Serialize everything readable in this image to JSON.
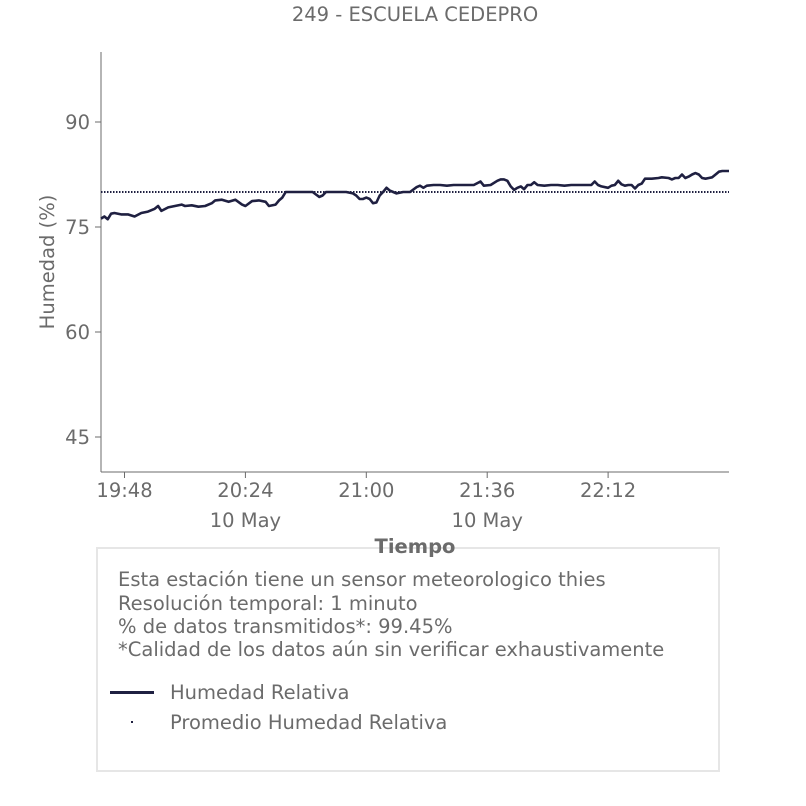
{
  "chart_data": {
    "type": "line",
    "title": "249 - ESCUELA CEDEPRO",
    "xlabel": "Tiempo",
    "ylabel": "Humedad (%)",
    "ylim": [
      40,
      100
    ],
    "xlim": [
      "19:41",
      "22:48"
    ],
    "grid": false,
    "x_ticks": [
      {
        "time": "19:48",
        "label": "19:48",
        "sublabel": ""
      },
      {
        "time": "20:24",
        "label": "20:24",
        "sublabel": "10 May"
      },
      {
        "time": "21:00",
        "label": "21:00",
        "sublabel": ""
      },
      {
        "time": "21:36",
        "label": "21:36",
        "sublabel": "10 May"
      },
      {
        "time": "22:12",
        "label": "22:12",
        "sublabel": ""
      }
    ],
    "y_ticks": [
      45,
      60,
      75,
      90
    ],
    "series": [
      {
        "name": "Humedad Relativa",
        "style": "solid",
        "color": "#1f2041",
        "points": [
          [
            "19:41",
            76.2
          ],
          [
            "19:42",
            76.5
          ],
          [
            "19:43",
            76.1
          ],
          [
            "19:44",
            76.9
          ],
          [
            "19:45",
            77.0
          ],
          [
            "19:47",
            76.8
          ],
          [
            "19:49",
            76.8
          ],
          [
            "19:51",
            76.5
          ],
          [
            "19:53",
            77.0
          ],
          [
            "19:55",
            77.2
          ],
          [
            "19:57",
            77.6
          ],
          [
            "19:58",
            78.0
          ],
          [
            "19:59",
            77.3
          ],
          [
            "20:01",
            77.8
          ],
          [
            "20:03",
            78.0
          ],
          [
            "20:05",
            78.2
          ],
          [
            "20:06",
            78.0
          ],
          [
            "20:08",
            78.1
          ],
          [
            "20:10",
            77.9
          ],
          [
            "20:12",
            78.0
          ],
          [
            "20:14",
            78.4
          ],
          [
            "20:15",
            78.8
          ],
          [
            "20:17",
            78.9
          ],
          [
            "20:19",
            78.6
          ],
          [
            "20:21",
            78.9
          ],
          [
            "20:23",
            78.2
          ],
          [
            "20:24",
            78.0
          ],
          [
            "20:26",
            78.7
          ],
          [
            "20:28",
            78.8
          ],
          [
            "20:30",
            78.6
          ],
          [
            "20:31",
            78.0
          ],
          [
            "20:33",
            78.2
          ],
          [
            "20:34",
            78.8
          ],
          [
            "20:35",
            79.2
          ],
          [
            "20:36",
            80.0
          ],
          [
            "20:38",
            80.0
          ],
          [
            "20:40",
            80.0
          ],
          [
            "20:42",
            80.0
          ],
          [
            "20:44",
            80.0
          ],
          [
            "20:46",
            79.3
          ],
          [
            "20:47",
            79.5
          ],
          [
            "20:48",
            80.0
          ],
          [
            "20:50",
            80.0
          ],
          [
            "20:52",
            80.0
          ],
          [
            "20:54",
            80.0
          ],
          [
            "20:56",
            79.8
          ],
          [
            "20:57",
            79.5
          ],
          [
            "20:58",
            79.0
          ],
          [
            "20:59",
            79.0
          ],
          [
            "21:00",
            79.2
          ],
          [
            "21:01",
            79.0
          ],
          [
            "21:02",
            78.4
          ],
          [
            "21:03",
            78.5
          ],
          [
            "21:04",
            79.5
          ],
          [
            "21:05",
            80.0
          ],
          [
            "21:06",
            80.6
          ],
          [
            "21:07",
            80.2
          ],
          [
            "21:08",
            80.0
          ],
          [
            "21:09",
            79.8
          ],
          [
            "21:11",
            80.0
          ],
          [
            "21:13",
            80.0
          ],
          [
            "21:15",
            80.7
          ],
          [
            "21:16",
            80.9
          ],
          [
            "21:17",
            80.6
          ],
          [
            "21:18",
            80.9
          ],
          [
            "21:20",
            81.0
          ],
          [
            "21:22",
            81.0
          ],
          [
            "21:24",
            80.9
          ],
          [
            "21:26",
            81.0
          ],
          [
            "21:28",
            81.0
          ],
          [
            "21:30",
            81.0
          ],
          [
            "21:32",
            81.0
          ],
          [
            "21:34",
            81.5
          ],
          [
            "21:35",
            80.9
          ],
          [
            "21:37",
            81.0
          ],
          [
            "21:39",
            81.6
          ],
          [
            "21:40",
            81.8
          ],
          [
            "21:41",
            81.8
          ],
          [
            "21:42",
            81.6
          ],
          [
            "21:43",
            80.8
          ],
          [
            "21:44",
            80.3
          ],
          [
            "21:45",
            80.6
          ],
          [
            "21:46",
            80.8
          ],
          [
            "21:47",
            80.4
          ],
          [
            "21:48",
            81.0
          ],
          [
            "21:49",
            81.0
          ],
          [
            "21:50",
            81.4
          ],
          [
            "21:51",
            81.0
          ],
          [
            "21:53",
            80.9
          ],
          [
            "21:55",
            81.0
          ],
          [
            "21:57",
            81.0
          ],
          [
            "21:59",
            80.9
          ],
          [
            "22:01",
            81.0
          ],
          [
            "22:03",
            81.0
          ],
          [
            "22:05",
            81.0
          ],
          [
            "22:07",
            81.0
          ],
          [
            "22:08",
            81.5
          ],
          [
            "22:09",
            81.0
          ],
          [
            "22:10",
            80.8
          ],
          [
            "22:12",
            80.6
          ],
          [
            "22:13",
            80.9
          ],
          [
            "22:14",
            81.0
          ],
          [
            "22:15",
            81.6
          ],
          [
            "22:16",
            81.1
          ],
          [
            "22:17",
            80.9
          ],
          [
            "22:18",
            81.0
          ],
          [
            "22:19",
            81.0
          ],
          [
            "22:20",
            80.5
          ],
          [
            "22:21",
            81.0
          ],
          [
            "22:22",
            81.2
          ],
          [
            "22:23",
            81.9
          ],
          [
            "22:25",
            81.9
          ],
          [
            "22:27",
            82.0
          ],
          [
            "22:28",
            82.1
          ],
          [
            "22:30",
            82.0
          ],
          [
            "22:31",
            81.8
          ],
          [
            "22:32",
            82.0
          ],
          [
            "22:33",
            82.0
          ],
          [
            "22:34",
            82.5
          ],
          [
            "22:35",
            82.0
          ],
          [
            "22:36",
            82.2
          ],
          [
            "22:37",
            82.5
          ],
          [
            "22:38",
            82.7
          ],
          [
            "22:39",
            82.5
          ],
          [
            "22:40",
            82.0
          ],
          [
            "22:41",
            81.9
          ],
          [
            "22:42",
            82.0
          ],
          [
            "22:43",
            82.1
          ],
          [
            "22:44",
            82.5
          ],
          [
            "22:45",
            82.9
          ],
          [
            "22:46",
            83.0
          ],
          [
            "22:47",
            83.0
          ],
          [
            "22:48",
            83.0
          ]
        ]
      },
      {
        "name": "Promedio Humedad Relativa",
        "style": "dotted",
        "color": "#1f2041",
        "constant": 80.0
      }
    ],
    "legend": {
      "placement": "bottom",
      "entries": [
        "Humedad Relativa",
        "Promedio Humedad Relativa"
      ]
    }
  },
  "info": {
    "lines": [
      "Esta estación tiene un sensor meteorologico thies",
      "Resolución temporal: 1 minuto",
      "% de datos transmitidos*: 99.45%",
      "*Calidad de los datos aún sin verificar exhaustivamente"
    ]
  },
  "colors": {
    "line": "#1f2041",
    "axis": "#6b6b6b",
    "box_border": "#e6e6e6"
  }
}
